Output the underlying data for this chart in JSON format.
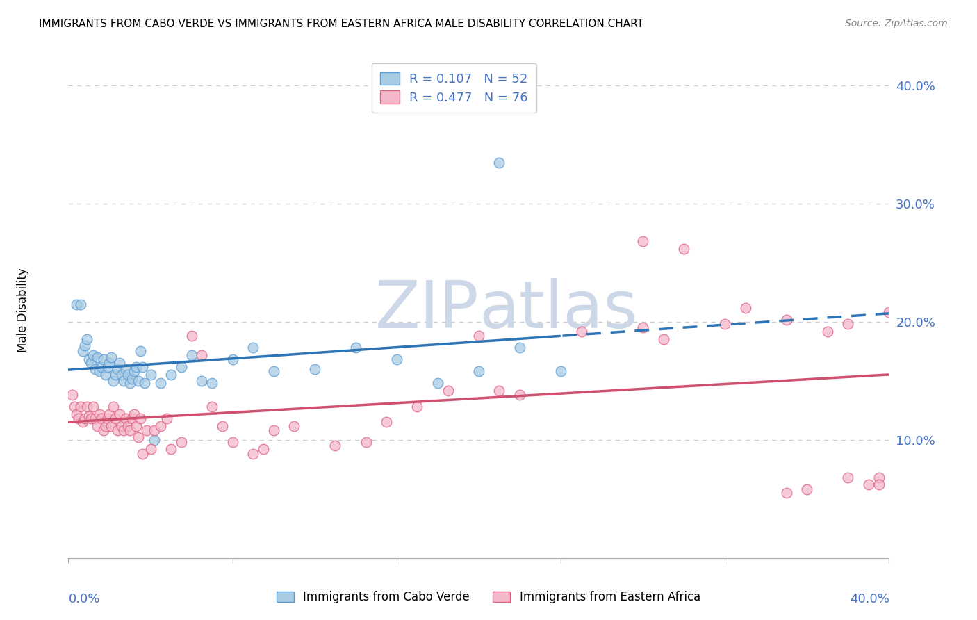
{
  "title": "IMMIGRANTS FROM CABO VERDE VS IMMIGRANTS FROM EASTERN AFRICA MALE DISABILITY CORRELATION CHART",
  "source": "Source: ZipAtlas.com",
  "ylabel": "Male Disability",
  "xlim": [
    0.0,
    0.4
  ],
  "ylim": [
    0.0,
    0.42
  ],
  "yticks": [
    0.1,
    0.2,
    0.3,
    0.4
  ],
  "xticks": [
    0.0,
    0.08,
    0.16,
    0.24,
    0.32,
    0.4
  ],
  "cabo_verde_R": 0.107,
  "cabo_verde_N": 52,
  "eastern_africa_R": 0.477,
  "eastern_africa_N": 76,
  "cabo_verde_color": "#a8cce4",
  "eastern_africa_color": "#f4b8cb",
  "cabo_verde_edge_color": "#5b9bd5",
  "eastern_africa_edge_color": "#e06080",
  "cabo_verde_line_color": "#2e75b6",
  "eastern_africa_line_color": "#d05070",
  "watermark_color": "#ccd8e8",
  "cabo_verde_x": [
    0.004,
    0.006,
    0.007,
    0.008,
    0.009,
    0.01,
    0.011,
    0.012,
    0.013,
    0.014,
    0.015,
    0.016,
    0.017,
    0.018,
    0.019,
    0.02,
    0.021,
    0.022,
    0.023,
    0.024,
    0.025,
    0.026,
    0.027,
    0.028,
    0.029,
    0.03,
    0.031,
    0.032,
    0.033,
    0.034,
    0.035,
    0.036,
    0.037,
    0.04,
    0.042,
    0.045,
    0.05,
    0.055,
    0.06,
    0.065,
    0.07,
    0.08,
    0.09,
    0.1,
    0.12,
    0.14,
    0.16,
    0.18,
    0.2,
    0.22,
    0.24,
    0.21
  ],
  "cabo_verde_y": [
    0.215,
    0.215,
    0.175,
    0.18,
    0.185,
    0.168,
    0.165,
    0.172,
    0.16,
    0.17,
    0.158,
    0.162,
    0.168,
    0.155,
    0.162,
    0.165,
    0.17,
    0.15,
    0.155,
    0.16,
    0.165,
    0.155,
    0.15,
    0.16,
    0.155,
    0.148,
    0.152,
    0.158,
    0.162,
    0.15,
    0.175,
    0.162,
    0.148,
    0.155,
    0.1,
    0.148,
    0.155,
    0.162,
    0.172,
    0.15,
    0.148,
    0.168,
    0.178,
    0.158,
    0.16,
    0.178,
    0.168,
    0.148,
    0.158,
    0.178,
    0.158,
    0.335
  ],
  "eastern_africa_x": [
    0.002,
    0.003,
    0.004,
    0.005,
    0.006,
    0.007,
    0.008,
    0.009,
    0.01,
    0.011,
    0.012,
    0.013,
    0.014,
    0.015,
    0.016,
    0.017,
    0.018,
    0.019,
    0.02,
    0.021,
    0.022,
    0.023,
    0.024,
    0.025,
    0.026,
    0.027,
    0.028,
    0.029,
    0.03,
    0.031,
    0.032,
    0.033,
    0.034,
    0.035,
    0.036,
    0.038,
    0.04,
    0.042,
    0.045,
    0.048,
    0.05,
    0.055,
    0.06,
    0.065,
    0.07,
    0.075,
    0.08,
    0.09,
    0.095,
    0.1,
    0.11,
    0.13,
    0.145,
    0.155,
    0.17,
    0.185,
    0.2,
    0.21,
    0.22,
    0.25,
    0.28,
    0.3,
    0.32,
    0.33,
    0.35,
    0.37,
    0.38,
    0.39,
    0.395,
    0.4,
    0.395,
    0.38,
    0.35,
    0.36,
    0.28,
    0.29
  ],
  "eastern_africa_y": [
    0.138,
    0.128,
    0.122,
    0.118,
    0.128,
    0.115,
    0.118,
    0.128,
    0.12,
    0.118,
    0.128,
    0.118,
    0.112,
    0.122,
    0.118,
    0.108,
    0.112,
    0.118,
    0.122,
    0.112,
    0.128,
    0.118,
    0.108,
    0.122,
    0.112,
    0.108,
    0.118,
    0.112,
    0.108,
    0.118,
    0.122,
    0.112,
    0.102,
    0.118,
    0.088,
    0.108,
    0.092,
    0.108,
    0.112,
    0.118,
    0.092,
    0.098,
    0.188,
    0.172,
    0.128,
    0.112,
    0.098,
    0.088,
    0.092,
    0.108,
    0.112,
    0.095,
    0.098,
    0.115,
    0.128,
    0.142,
    0.188,
    0.142,
    0.138,
    0.192,
    0.268,
    0.262,
    0.198,
    0.212,
    0.202,
    0.192,
    0.198,
    0.062,
    0.068,
    0.208,
    0.062,
    0.068,
    0.055,
    0.058,
    0.195,
    0.185
  ]
}
